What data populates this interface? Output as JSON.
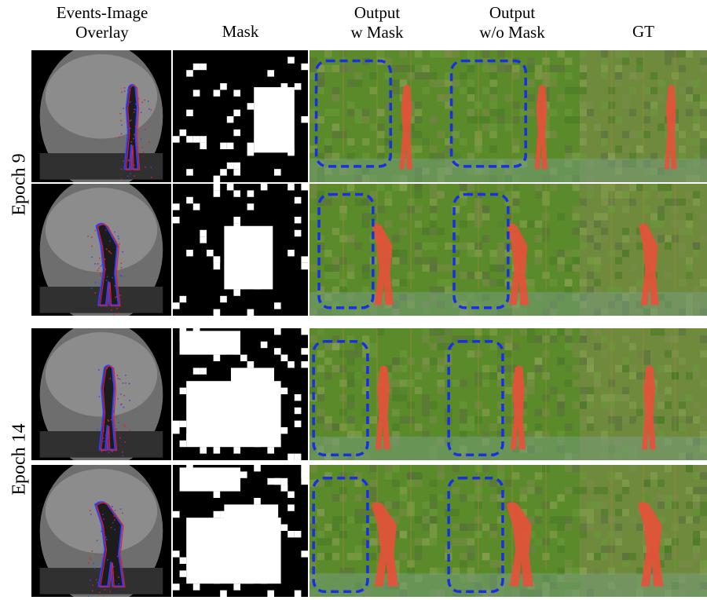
{
  "figure": {
    "columns": [
      "Events-Image\nOverlay",
      "Mask",
      "Output\nw Mask",
      "Output\nw/o Mask",
      "GT"
    ],
    "rows": [
      "Epoch 9",
      "Epoch 14"
    ],
    "colors": {
      "background": "#ffffff",
      "highlight_box": "#1630e6",
      "events_positive": "#e02020",
      "events_negative": "#3040ff",
      "output_green": "#5a8a2a",
      "person_red": "#e8503a"
    }
  }
}
